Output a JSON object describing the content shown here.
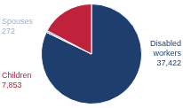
{
  "chart_data": {
    "type": "pie",
    "categories": [
      "Disabled workers",
      "Spouses",
      "Children"
    ],
    "values": [
      37422,
      272,
      7853
    ],
    "value_labels": [
      "37,422",
      "272",
      "7,853"
    ],
    "colors": [
      "#1e3f6e",
      "#9eb0c8",
      "#c0223b"
    ],
    "data_labels": true
  }
}
